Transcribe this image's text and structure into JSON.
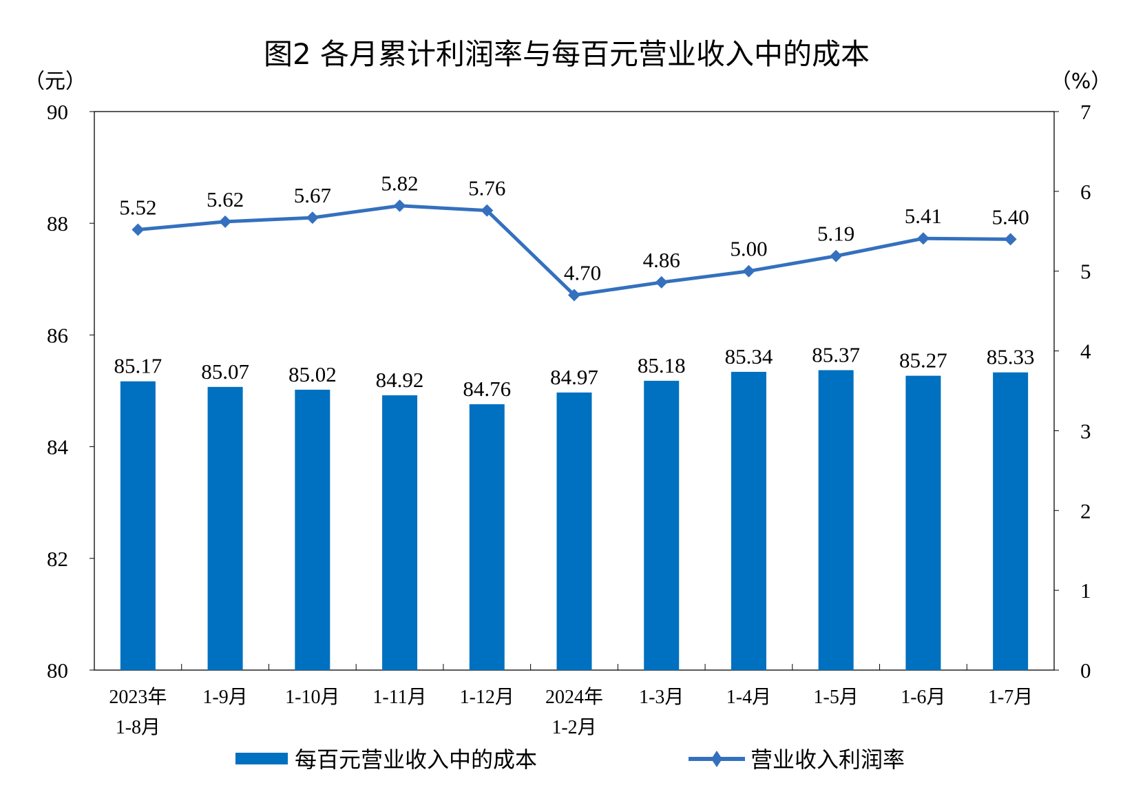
{
  "chart_data": {
    "type": "bar+line",
    "title": "图2  各月累计利润率与每百元营业收入中的成本",
    "left_unit": "（元）",
    "right_unit": "（%）",
    "categories": [
      [
        "2023年",
        "1-8月"
      ],
      [
        "1-9月"
      ],
      [
        "1-10月"
      ],
      [
        "1-11月"
      ],
      [
        "1-12月"
      ],
      [
        "2024年",
        "1-2月"
      ],
      [
        "1-3月"
      ],
      [
        "1-4月"
      ],
      [
        "1-5月"
      ],
      [
        "1-6月"
      ],
      [
        "1-7月"
      ]
    ],
    "left_axis": {
      "ylim": [
        80,
        90
      ],
      "ticks": [
        80,
        82,
        84,
        86,
        88,
        90
      ]
    },
    "right_axis": {
      "ylim": [
        0,
        7
      ],
      "ticks": [
        0,
        1,
        2,
        3,
        4,
        5,
        6,
        7
      ]
    },
    "series": [
      {
        "name": "每百元营业收入中的成本",
        "type": "bar",
        "axis": "left",
        "color": "#0070C0",
        "values": [
          85.17,
          85.07,
          85.02,
          84.92,
          84.76,
          84.97,
          85.18,
          85.34,
          85.37,
          85.27,
          85.33
        ]
      },
      {
        "name": "营业收入利润率",
        "type": "line",
        "axis": "right",
        "color": "#3470BE",
        "marker": "diamond",
        "values": [
          5.52,
          5.62,
          5.67,
          5.82,
          5.76,
          4.7,
          4.86,
          5.0,
          5.19,
          5.41,
          5.4
        ]
      }
    ],
    "legend": "bottom",
    "grid": false
  }
}
